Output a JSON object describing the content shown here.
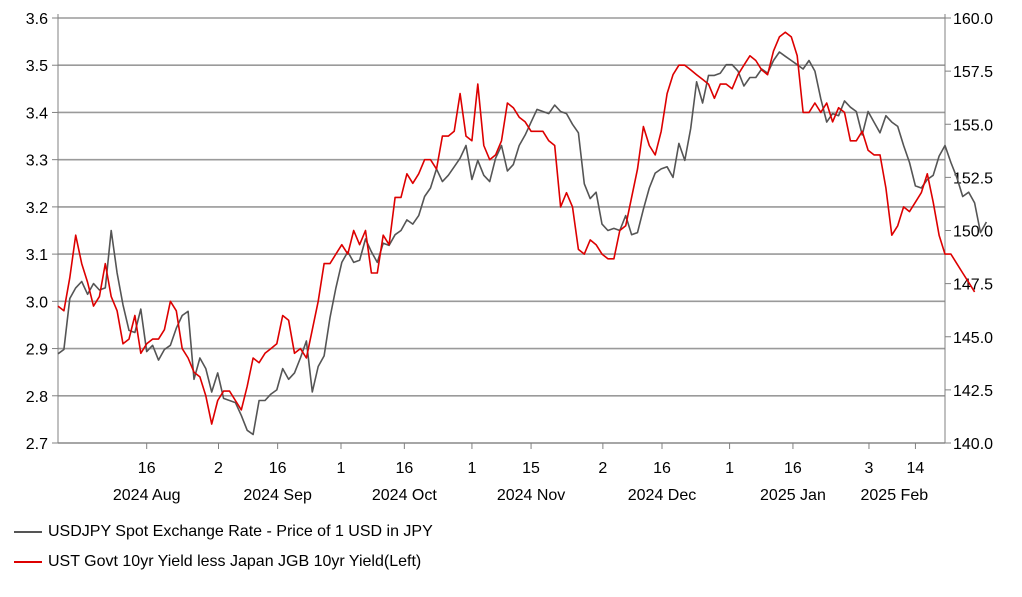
{
  "chart_data": {
    "type": "line",
    "title": "",
    "left_axis": {
      "ylim": [
        2.7,
        3.6
      ],
      "ticks": [
        "2.7",
        "2.8",
        "2.9",
        "3.0",
        "3.1",
        "3.2",
        "3.3",
        "3.4",
        "3.5",
        "3.6"
      ]
    },
    "right_axis": {
      "ylim": [
        140.0,
        160.0
      ],
      "ticks": [
        "140.0",
        "142.5",
        "145.0",
        "147.5",
        "150.0",
        "152.5",
        "155.0",
        "157.5",
        "160.0"
      ]
    },
    "x_range": [
      "2024-07-26",
      "2025-02-21"
    ],
    "day_ticks": [
      {
        "label": "16",
        "date": "2024-08-16"
      },
      {
        "label": "2",
        "date": "2024-09-02"
      },
      {
        "label": "16",
        "date": "2024-09-16"
      },
      {
        "label": "1",
        "date": "2024-10-01"
      },
      {
        "label": "16",
        "date": "2024-10-16"
      },
      {
        "label": "1",
        "date": "2024-11-01"
      },
      {
        "label": "15",
        "date": "2024-11-15"
      },
      {
        "label": "2",
        "date": "2024-12-02"
      },
      {
        "label": "16",
        "date": "2024-12-16"
      },
      {
        "label": "1",
        "date": "2025-01-01"
      },
      {
        "label": "16",
        "date": "2025-01-16"
      },
      {
        "label": "3",
        "date": "2025-02-03"
      },
      {
        "label": "14",
        "date": "2025-02-14"
      }
    ],
    "month_labels": [
      {
        "label": "2024 Aug",
        "date": "2024-08-16"
      },
      {
        "label": "2024 Sep",
        "date": "2024-09-16"
      },
      {
        "label": "2024 Oct",
        "date": "2024-10-16"
      },
      {
        "label": "2024 Nov",
        "date": "2024-11-15"
      },
      {
        "label": "2024 Dec",
        "date": "2024-12-16"
      },
      {
        "label": "2025 Jan",
        "date": "2025-01-16"
      },
      {
        "label": "2025 Feb",
        "date": "2025-02-09"
      }
    ],
    "series": [
      {
        "name": "USDJPY Spot Exchange Rate - Price of 1 USD in JPY",
        "axis": "right",
        "color": "#555555",
        "start": "2024-07-26",
        "step_days": 1.4,
        "values": [
          144.2,
          144.4,
          146.8,
          147.3,
          147.6,
          147.0,
          147.5,
          147.2,
          147.3,
          150.0,
          148.0,
          146.5,
          145.3,
          145.2,
          146.3,
          144.3,
          144.6,
          143.9,
          144.4,
          144.6,
          145.4,
          146.0,
          146.2,
          143.0,
          144.0,
          143.5,
          142.4,
          143.3,
          142.1,
          142.0,
          141.9,
          141.3,
          140.6,
          140.4,
          142.0,
          142.0,
          142.3,
          142.5,
          143.5,
          143.0,
          143.3,
          144.0,
          144.8,
          142.4,
          143.6,
          144.1,
          145.9,
          147.3,
          148.5,
          149.0,
          148.5,
          148.6,
          149.6,
          149.0,
          148.5,
          149.4,
          149.3,
          149.8,
          150.0,
          150.5,
          150.3,
          150.7,
          151.6,
          152.0,
          152.9,
          152.3,
          152.6,
          153.0,
          153.4,
          154.0,
          152.4,
          153.3,
          152.6,
          152.3,
          153.4,
          154.0,
          152.8,
          153.1,
          154.0,
          154.5,
          155.1,
          155.7,
          155.6,
          155.5,
          155.9,
          155.6,
          155.5,
          155.0,
          154.6,
          152.2,
          151.5,
          151.8,
          150.3,
          150.0,
          150.1,
          150.0,
          150.7,
          149.8,
          149.9,
          151.0,
          152.0,
          152.7,
          152.9,
          153.0,
          152.5,
          154.1,
          153.3,
          154.8,
          157.0,
          156.0,
          157.3,
          157.3,
          157.4,
          157.8,
          157.8,
          157.5,
          156.8,
          157.2,
          157.2,
          157.6,
          157.4,
          158.0,
          158.4,
          158.2,
          158.0,
          157.8,
          157.6,
          158.0,
          157.5,
          156.2,
          155.1,
          155.5,
          155.4,
          156.1,
          155.8,
          155.6,
          154.5,
          155.6,
          155.1,
          154.6,
          155.4,
          155.1,
          154.9,
          154.0,
          153.2,
          152.1,
          152.0,
          152.4,
          152.6,
          153.5,
          154.0,
          153.2,
          152.5,
          151.6,
          151.8,
          151.3,
          149.9,
          150.4
        ]
      },
      {
        "name": "UST Govt 10yr Yield less Japan JGB 10yr Yield(Left)",
        "axis": "left",
        "color": "#dd0000",
        "start": "2024-07-26",
        "step_days": 1.4,
        "values": [
          2.99,
          2.98,
          3.05,
          3.14,
          3.08,
          3.04,
          2.99,
          3.01,
          3.08,
          3.01,
          2.98,
          2.91,
          2.92,
          2.97,
          2.89,
          2.91,
          2.92,
          2.92,
          2.94,
          3.0,
          2.98,
          2.9,
          2.88,
          2.85,
          2.84,
          2.8,
          2.74,
          2.79,
          2.81,
          2.81,
          2.79,
          2.77,
          2.82,
          2.88,
          2.87,
          2.89,
          2.9,
          2.91,
          2.97,
          2.96,
          2.89,
          2.9,
          2.88,
          2.94,
          3.0,
          3.08,
          3.08,
          3.1,
          3.12,
          3.1,
          3.15,
          3.12,
          3.15,
          3.06,
          3.06,
          3.14,
          3.12,
          3.22,
          3.22,
          3.27,
          3.25,
          3.27,
          3.3,
          3.3,
          3.28,
          3.35,
          3.35,
          3.36,
          3.44,
          3.35,
          3.34,
          3.46,
          3.33,
          3.3,
          3.31,
          3.34,
          3.42,
          3.41,
          3.39,
          3.38,
          3.36,
          3.36,
          3.36,
          3.34,
          3.33,
          3.2,
          3.23,
          3.2,
          3.11,
          3.1,
          3.13,
          3.12,
          3.1,
          3.09,
          3.09,
          3.15,
          3.16,
          3.22,
          3.28,
          3.37,
          3.33,
          3.31,
          3.36,
          3.44,
          3.48,
          3.5,
          3.5,
          3.49,
          3.48,
          3.47,
          3.46,
          3.43,
          3.46,
          3.46,
          3.45,
          3.48,
          3.5,
          3.52,
          3.51,
          3.49,
          3.48,
          3.53,
          3.56,
          3.57,
          3.56,
          3.52,
          3.4,
          3.4,
          3.42,
          3.4,
          3.42,
          3.38,
          3.41,
          3.4,
          3.34,
          3.34,
          3.36,
          3.32,
          3.31,
          3.31,
          3.24,
          3.14,
          3.16,
          3.2,
          3.19,
          3.21,
          3.23,
          3.27,
          3.21,
          3.14,
          3.1,
          3.1,
          3.08,
          3.06,
          3.04,
          3.02
        ]
      }
    ]
  },
  "legend": [
    {
      "label": "USDJPY Spot Exchange Rate - Price of 1 USD in JPY",
      "color": "#555555"
    },
    {
      "label": "UST Govt 10yr Yield less Japan JGB 10yr Yield(Left)",
      "color": "#dd0000"
    }
  ]
}
